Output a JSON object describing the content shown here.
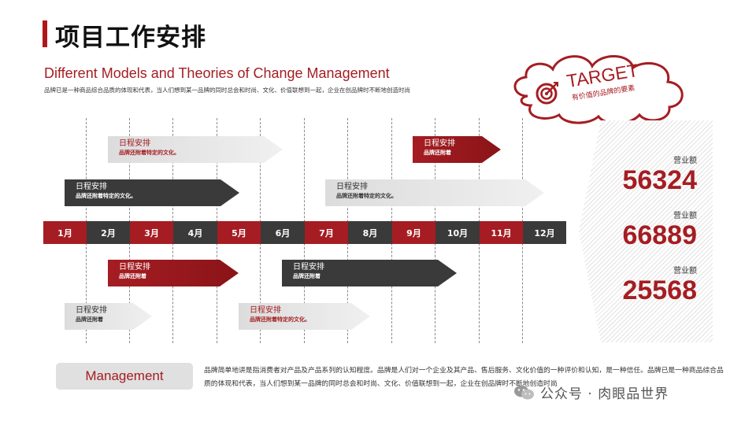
{
  "header": {
    "title": "项目工作安排",
    "subtitle": "Different Models and Theories of Change Management",
    "description": "品牌已是一种商品综合品质的体现和代表，当人们想到某一品牌的同时总会和时尚、文化、价值联想到一起，企业在创品牌时不断地创造时尚"
  },
  "timeline": {
    "months": [
      {
        "label": "1月",
        "color": "red"
      },
      {
        "label": "2月",
        "color": "dark"
      },
      {
        "label": "3月",
        "color": "red"
      },
      {
        "label": "4月",
        "color": "dark"
      },
      {
        "label": "5月",
        "color": "red"
      },
      {
        "label": "6月",
        "color": "dark"
      },
      {
        "label": "7月",
        "color": "red"
      },
      {
        "label": "8月",
        "color": "dark"
      },
      {
        "label": "9月",
        "color": "red"
      },
      {
        "label": "10月",
        "color": "dark"
      },
      {
        "label": "11月",
        "color": "red"
      },
      {
        "label": "12月",
        "color": "dark"
      }
    ]
  },
  "schedules": [
    {
      "title": "日程安排",
      "subtitle": "品牌还附着特定的文化。",
      "style": "light"
    },
    {
      "title": "日程安排",
      "subtitle": "品牌还附着",
      "style": "red"
    },
    {
      "title": "日程安排",
      "subtitle": "品牌还附着特定的文化。",
      "style": "dark"
    },
    {
      "title": "日程安排",
      "subtitle": "品牌还附着特定的文化。",
      "style": "light-darktext"
    },
    {
      "title": "日程安排",
      "subtitle": "品牌还附着",
      "style": "red"
    },
    {
      "title": "日程安排",
      "subtitle": "品牌还附着",
      "style": "dark"
    },
    {
      "title": "日程安排",
      "subtitle": "品牌还附着",
      "style": "light-darktext"
    },
    {
      "title": "日程安排",
      "subtitle": "品牌还附着特定的文化。",
      "style": "light"
    }
  ],
  "target": {
    "label": "TARGET",
    "sub": "有价值的品牌的要素"
  },
  "stats": [
    {
      "label": "营业额",
      "value": "56324"
    },
    {
      "label": "营业额",
      "value": "66889"
    },
    {
      "label": "营业额",
      "value": "25568"
    }
  ],
  "footer": {
    "management_label": "Management",
    "text": "品牌简单地讲是指消费者对产品及产品系列的认知程度。品牌是人们对一个企业及其产品、售后服务、文化价值的一种评价和认知，是一种信任。品牌已是一种商品综合品质的体现和代表，当人们想到某一品牌的同时总会和时尚、文化、价值联想到一起，企业在创品牌时不断地创造时尚",
    "watermark": "公众号 · 肉眼品世界"
  },
  "colors": {
    "accent": "#a51d22",
    "dark": "#3a3a3a",
    "light": "#e0e0e0"
  }
}
